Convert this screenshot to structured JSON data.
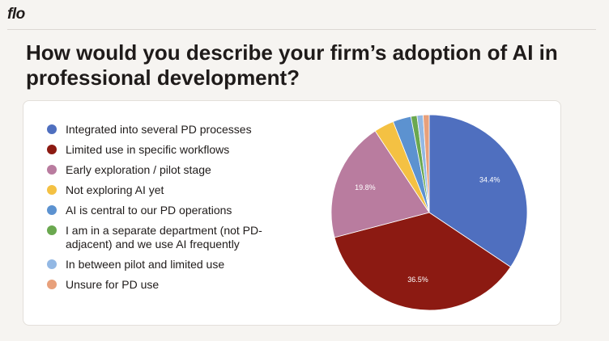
{
  "logo": "flo",
  "chart_data": {
    "type": "pie",
    "title": "How would you describe your firm’s adoption of AI in professional development?",
    "categories": [
      "Integrated into several PD processes",
      "Limited use in specific workflows",
      "Early exploration / pilot stage",
      "Not exploring AI yet",
      "AI is central to our PD operations",
      "I am in a separate department (not PD-adjacent) and we use AI frequently",
      "In between pilot and limited use",
      "Unsure for PD use"
    ],
    "values": [
      34.4,
      36.5,
      19.8,
      3.3,
      3.0,
      1.0,
      1.0,
      1.0
    ],
    "value_labels": [
      "34.4%",
      "36.5%",
      "19.8%",
      null,
      null,
      null,
      null,
      null
    ],
    "colors": [
      "#4f6fbf",
      "#8c1a12",
      "#b97c9f",
      "#f4c143",
      "#5c92d0",
      "#6aa84f",
      "#93b8e4",
      "#e8a07b"
    ]
  }
}
